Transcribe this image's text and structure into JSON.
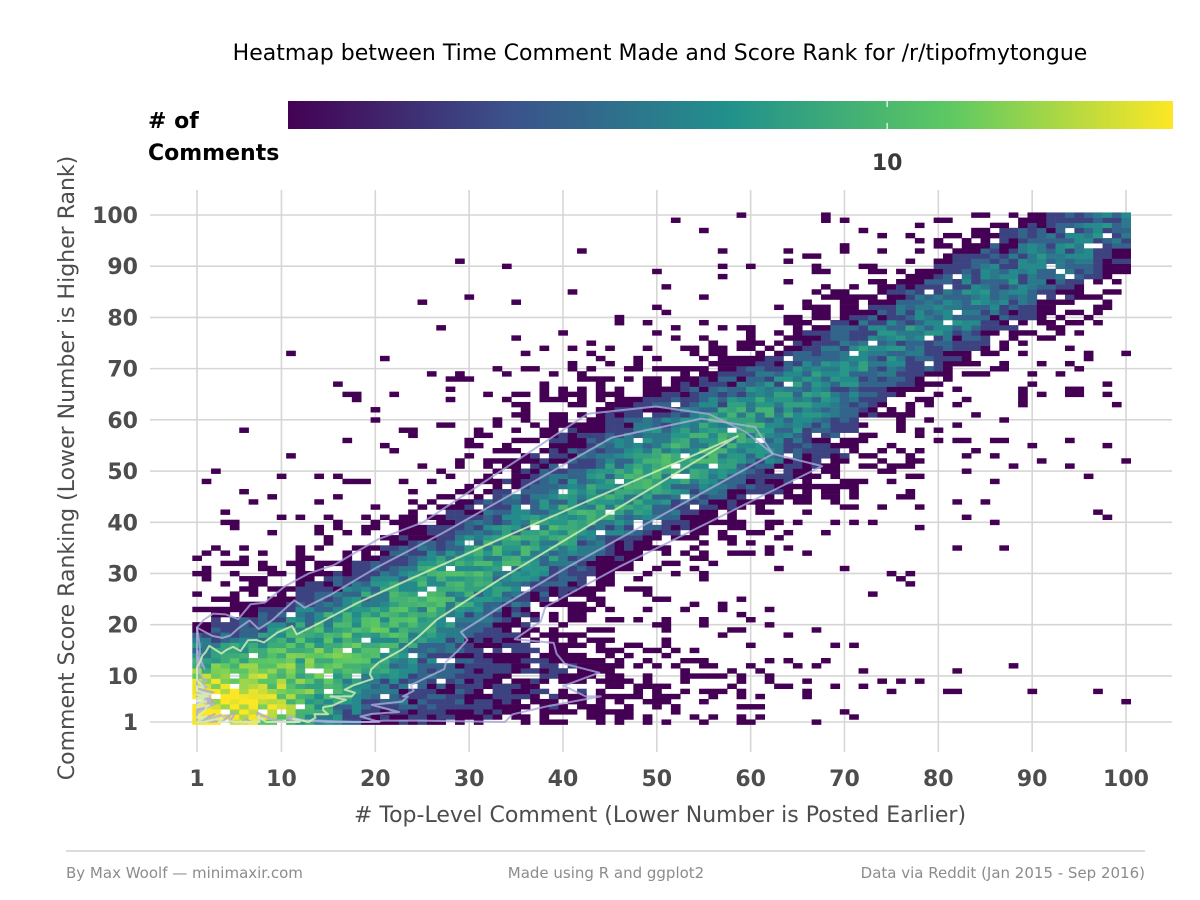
{
  "chart_data": {
    "type": "heatmap",
    "title": "Heatmap between Time Comment Made and Score Rank for /r/tipofmytongue",
    "xlabel": "# Top-Level Comment (Lower Number is Posted Earlier)",
    "ylabel": "Comment Score Ranking (Lower Number is Higher Rank)",
    "xlim": [
      1,
      100
    ],
    "ylim": [
      1,
      100
    ],
    "x_ticks": [
      1,
      10,
      20,
      30,
      40,
      50,
      60,
      70,
      80,
      90,
      100
    ],
    "y_ticks": [
      1,
      10,
      20,
      30,
      40,
      50,
      60,
      70,
      80,
      90,
      100
    ],
    "x_tick_labels": [
      "1",
      "10",
      "20",
      "30",
      "40",
      "50",
      "60",
      "70",
      "80",
      "90",
      "100"
    ],
    "y_tick_labels": [
      "1",
      "10",
      "20",
      "30",
      "40",
      "50",
      "60",
      "70",
      "80",
      "90",
      "100"
    ],
    "grid": true,
    "color_scale": {
      "name": "viridis",
      "scale": "log10",
      "min": 1,
      "max": 30,
      "legend_title_lines": [
        "# of",
        "Comments"
      ],
      "legend_ticks": [
        10
      ],
      "legend_tick_labels": [
        "10"
      ],
      "legend_position": "top",
      "stops": [
        "#440154",
        "#3b528b",
        "#21918c",
        "#5ec962",
        "#fde725"
      ]
    },
    "contours": true,
    "density_description": "Counts are highest near x=1,y=1 and along the diagonal y≈x; a dense band extends from (1,1) to about (45,45), with sparse single counts elsewhere and a thin diagonal ridge to (100,100)."
  },
  "footer": {
    "left": "By Max Woolf — minimaxir.com",
    "center": "Made using R and ggplot2",
    "right": "Data via Reddit (Jan 2015 - Sep 2016)"
  },
  "colors": {
    "grid": "#d6d6d6",
    "tick_text": "#4d4d4d",
    "footer_text": "#8c8c8c",
    "footer_rule": "#c8c8c8"
  }
}
